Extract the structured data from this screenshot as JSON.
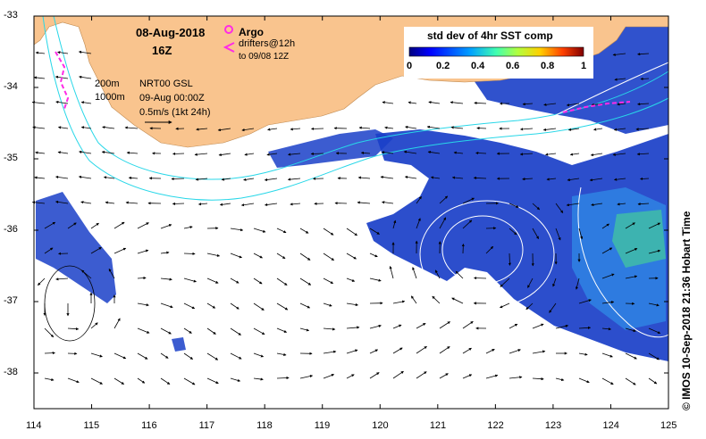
{
  "title": {
    "date": "08-Aug-2018",
    "hour": "16Z"
  },
  "legend": {
    "argo_label": "Argo",
    "drifters_label": "drifters@12h",
    "drifters_sub": "to 09/08 12Z",
    "contour_200": "200m",
    "contour_1000": "1000m",
    "product": "NRT00 GSL",
    "product_time": "09-Aug 00:00Z",
    "vector_scale": "0.5m/s (1kt 24h)"
  },
  "colorbar": {
    "title": "std dev of 4hr SST comp",
    "ticks": [
      "0",
      "0.2",
      "0.4",
      "0.6",
      "0.8",
      "1"
    ],
    "range": [
      0,
      1
    ]
  },
  "axes": {
    "lon_ticks": [
      "114",
      "115",
      "116",
      "117",
      "118",
      "119",
      "120",
      "121",
      "122",
      "123",
      "124",
      "125"
    ],
    "lat_ticks": [
      "-33",
      "-34",
      "-35",
      "-36",
      "-37",
      "-38"
    ],
    "lon_range": [
      114,
      125
    ],
    "lat_range": [
      -38.5,
      -33
    ]
  },
  "credit": "© IMOS 10-Sep-2018 21:36 Hobart Time",
  "colors": {
    "land": "#f9c48e",
    "isobath": "#28d7e8",
    "drifter": "#ff2be6",
    "argo": "#ff2be6",
    "ssh_contour": "#ffffff",
    "vector": "#000000"
  }
}
